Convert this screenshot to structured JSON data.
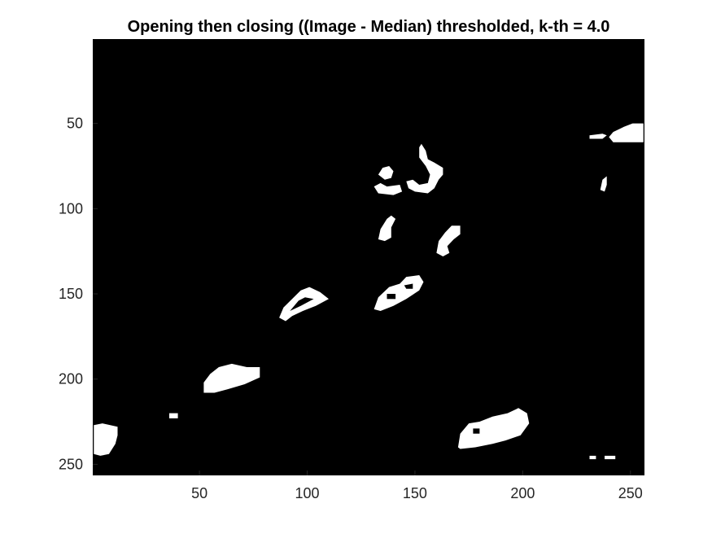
{
  "chart_data": {
    "type": "heatmap",
    "title": "Opening then closing ((Image - Median) thresholded, k-th = 4.0",
    "xlabel": "",
    "ylabel": "",
    "xlim": [
      0.5,
      256.5
    ],
    "ylim": [
      0.5,
      256.5
    ],
    "y_reversed": true,
    "xticks": [
      50,
      100,
      150,
      200,
      250
    ],
    "yticks": [
      50,
      100,
      150,
      200,
      250
    ],
    "xtick_labels": [
      "50",
      "100",
      "150",
      "200",
      "250"
    ],
    "ytick_labels": [
      "50",
      "100",
      "150",
      "200",
      "250"
    ],
    "grid": false,
    "colormap": "binary (0 = black, 1 = white)",
    "background_value": 0,
    "blobs": [
      {
        "label": "blob-1",
        "value": 1,
        "points": [
          [
            231,
            57
          ],
          [
            237,
            56
          ],
          [
            239,
            57
          ],
          [
            237,
            59
          ],
          [
            231,
            59
          ]
        ]
      },
      {
        "label": "blob-2",
        "value": 1,
        "points": [
          [
            240,
            58
          ],
          [
            242,
            55
          ],
          [
            247,
            52
          ],
          [
            251,
            50
          ],
          [
            256,
            50
          ],
          [
            256,
            61
          ],
          [
            242,
            61
          ]
        ]
      },
      {
        "label": "blob-3",
        "value": 1,
        "points": [
          [
            236,
            89
          ],
          [
            237,
            83
          ],
          [
            239,
            81
          ],
          [
            239,
            86
          ],
          [
            238,
            90
          ]
        ]
      },
      {
        "label": "blob-4",
        "value": 1,
        "points": [
          [
            133,
            80
          ],
          [
            135,
            76
          ],
          [
            138,
            75
          ],
          [
            140,
            78
          ],
          [
            139,
            82
          ],
          [
            136,
            83
          ]
        ]
      },
      {
        "label": "blob-5",
        "value": 1,
        "points": [
          [
            131,
            87
          ],
          [
            134,
            85
          ],
          [
            137,
            87
          ],
          [
            143,
            86
          ],
          [
            144,
            90
          ],
          [
            140,
            92
          ],
          [
            133,
            91
          ]
        ]
      },
      {
        "label": "blob-6",
        "value": 1,
        "points": [
          [
            152,
            64
          ],
          [
            153,
            62
          ],
          [
            155,
            66
          ],
          [
            156,
            71
          ],
          [
            159,
            73
          ],
          [
            163,
            76
          ],
          [
            163,
            80
          ],
          [
            161,
            83
          ],
          [
            159,
            88
          ],
          [
            156,
            91
          ],
          [
            150,
            90
          ],
          [
            147,
            88
          ],
          [
            146,
            84
          ],
          [
            149,
            83
          ],
          [
            152,
            86
          ],
          [
            156,
            85
          ],
          [
            157,
            80
          ],
          [
            155,
            75
          ],
          [
            152,
            70
          ]
        ]
      },
      {
        "label": "blob-7",
        "value": 1,
        "points": [
          [
            137,
            106
          ],
          [
            139,
            104
          ],
          [
            141,
            106
          ],
          [
            139,
            111
          ],
          [
            139,
            117
          ],
          [
            136,
            119
          ],
          [
            133,
            118
          ],
          [
            134,
            112
          ]
        ]
      },
      {
        "label": "blob-8",
        "value": 1,
        "points": [
          [
            164,
            114
          ],
          [
            167,
            110
          ],
          [
            171,
            110
          ],
          [
            171,
            115
          ],
          [
            168,
            118
          ],
          [
            165,
            122
          ],
          [
            166,
            126
          ],
          [
            163,
            128
          ],
          [
            160,
            126
          ],
          [
            161,
            119
          ]
        ]
      },
      {
        "label": "blob-9",
        "value": 1,
        "points": [
          [
            87,
            164
          ],
          [
            89,
            158
          ],
          [
            93,
            153
          ],
          [
            97,
            148
          ],
          [
            101,
            146
          ],
          [
            106,
            149
          ],
          [
            110,
            153
          ],
          [
            104,
            157
          ],
          [
            98,
            160
          ],
          [
            93,
            163
          ],
          [
            90,
            166
          ]
        ]
      },
      {
        "label": "blob-10",
        "value": 1,
        "points": [
          [
            131,
            159
          ],
          [
            133,
            152
          ],
          [
            138,
            146
          ],
          [
            143,
            144
          ],
          [
            146,
            140
          ],
          [
            152,
            139
          ],
          [
            154,
            143
          ],
          [
            152,
            148
          ],
          [
            146,
            153
          ],
          [
            140,
            157
          ],
          [
            134,
            160
          ]
        ]
      },
      {
        "label": "blob-11",
        "value": 1,
        "points": [
          [
            52,
            208
          ],
          [
            52,
            202
          ],
          [
            55,
            197
          ],
          [
            59,
            193
          ],
          [
            65,
            191
          ],
          [
            72,
            193
          ],
          [
            78,
            193
          ],
          [
            78,
            199
          ],
          [
            71,
            203
          ],
          [
            63,
            206
          ],
          [
            57,
            208
          ]
        ]
      },
      {
        "label": "blob-12",
        "value": 1,
        "points": [
          [
            36,
            220
          ],
          [
            40,
            220
          ],
          [
            40,
            223
          ],
          [
            36,
            223
          ]
        ]
      },
      {
        "label": "blob-13",
        "value": 1,
        "points": [
          [
            1,
            227
          ],
          [
            5,
            226
          ],
          [
            12,
            228
          ],
          [
            12,
            233
          ],
          [
            11,
            238
          ],
          [
            8,
            244
          ],
          [
            4,
            245
          ],
          [
            1,
            244
          ]
        ]
      },
      {
        "label": "blob-14",
        "value": 1,
        "points": [
          [
            170,
            240
          ],
          [
            171,
            232
          ],
          [
            175,
            226
          ],
          [
            180,
            225
          ],
          [
            186,
            222
          ],
          [
            193,
            220
          ],
          [
            198,
            217
          ],
          [
            202,
            220
          ],
          [
            203,
            226
          ],
          [
            199,
            233
          ],
          [
            192,
            236
          ],
          [
            186,
            238
          ],
          [
            178,
            240
          ],
          [
            171,
            241
          ]
        ]
      },
      {
        "label": "blob-15",
        "value": 1,
        "points": [
          [
            231,
            245
          ],
          [
            234,
            245
          ],
          [
            234,
            247
          ],
          [
            231,
            247
          ]
        ]
      },
      {
        "label": "blob-16",
        "value": 1,
        "points": [
          [
            238,
            245
          ],
          [
            243,
            245
          ],
          [
            243,
            247
          ],
          [
            238,
            247
          ]
        ]
      }
    ],
    "holes": [
      {
        "label": "hole-1",
        "value": 0,
        "points": [
          [
            92,
            160
          ],
          [
            96,
            154
          ],
          [
            99,
            152
          ],
          [
            103,
            153
          ],
          [
            97,
            157
          ]
        ]
      },
      {
        "label": "hole-2",
        "value": 0,
        "points": [
          [
            137,
            150
          ],
          [
            141,
            150
          ],
          [
            141,
            153
          ],
          [
            137,
            153
          ]
        ]
      },
      {
        "label": "hole-3",
        "value": 0,
        "points": [
          [
            145,
            145
          ],
          [
            149,
            144
          ],
          [
            149,
            147
          ],
          [
            146,
            147
          ]
        ]
      },
      {
        "label": "hole-4",
        "value": 0,
        "points": [
          [
            177,
            229
          ],
          [
            180,
            229
          ],
          [
            180,
            232
          ],
          [
            177,
            232
          ]
        ]
      }
    ]
  }
}
